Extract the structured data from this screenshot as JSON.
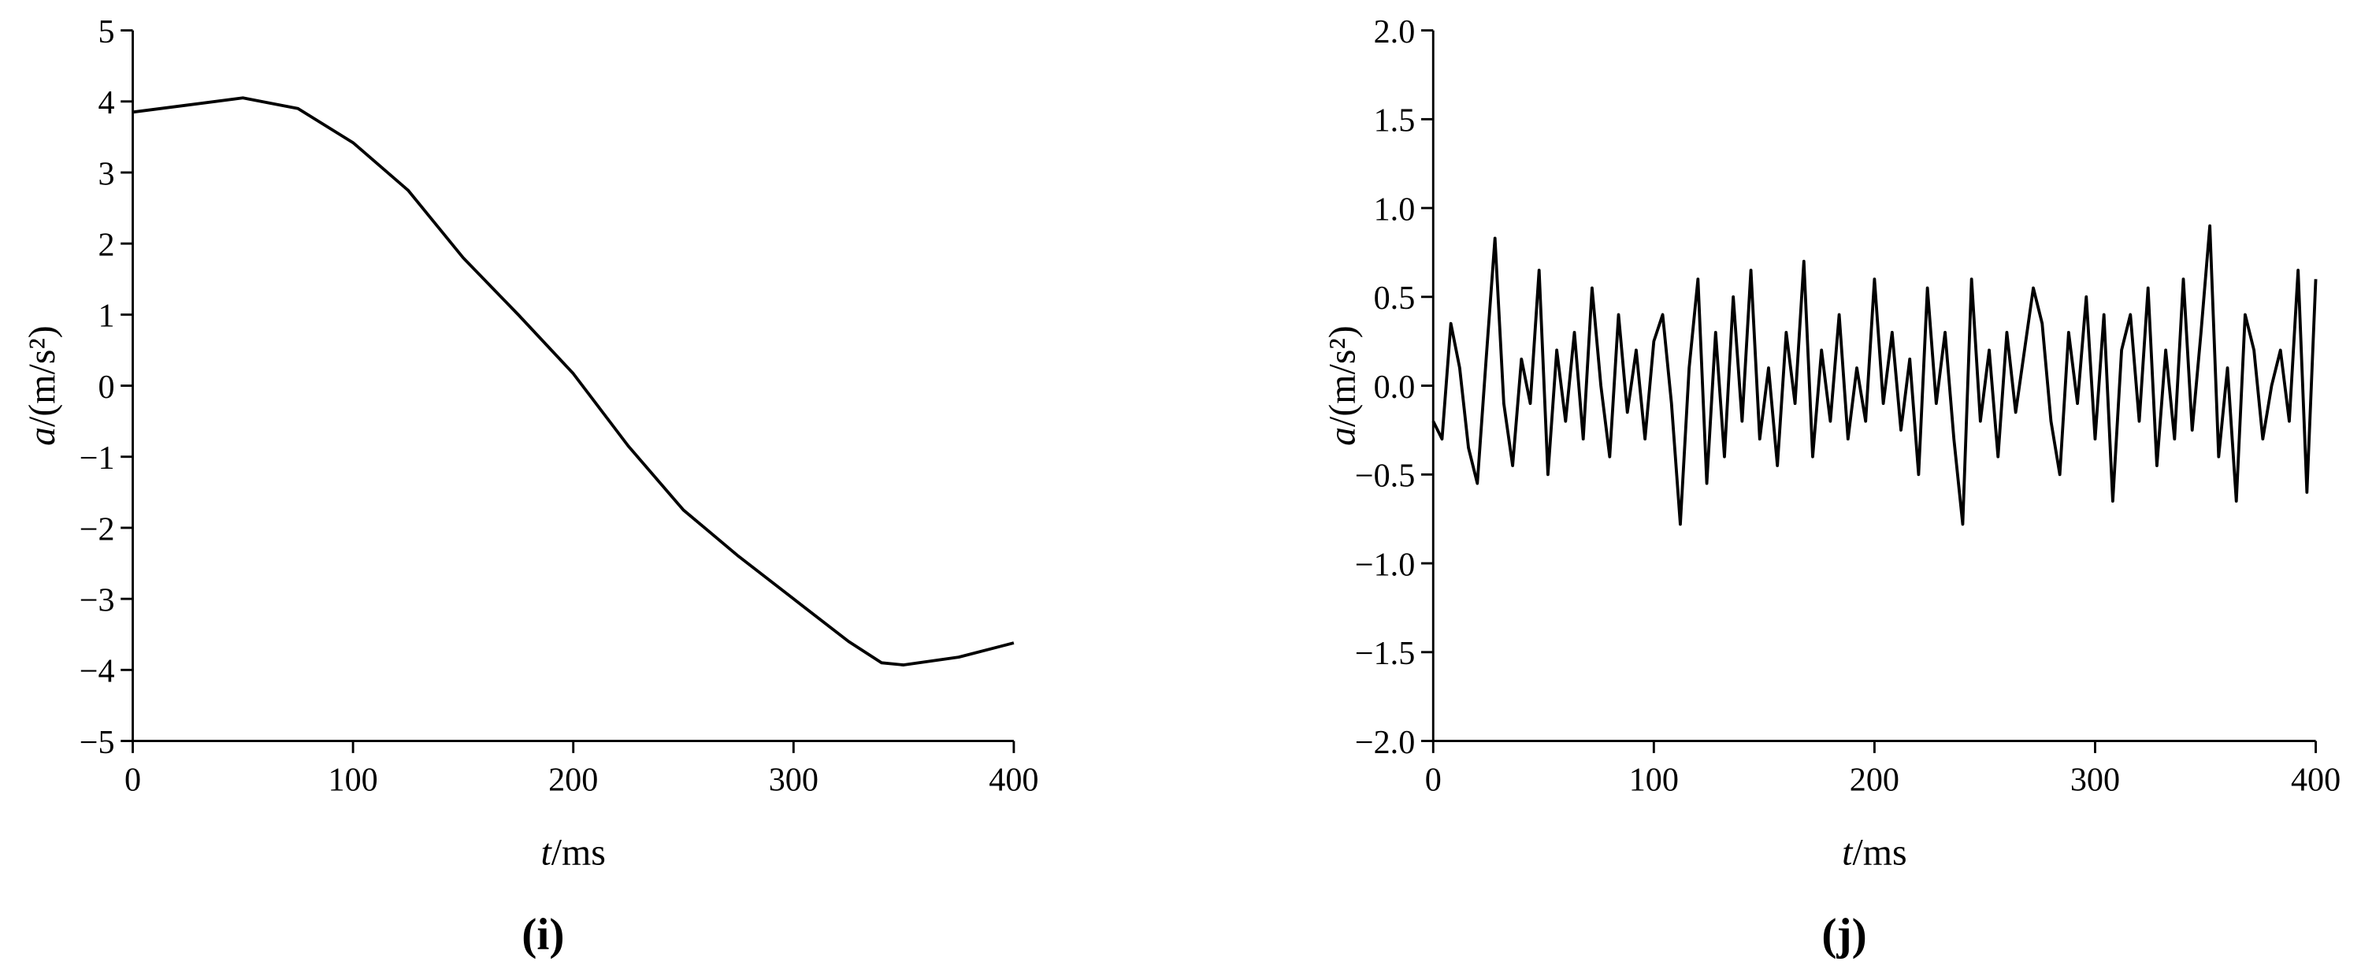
{
  "chart_data": [
    {
      "type": "line",
      "panel": "(i)",
      "xlabel": {
        "symbol": "t",
        "unit": "/ms"
      },
      "ylabel": {
        "symbol": "a",
        "unit": "/(m/s²)"
      },
      "xlim": [
        0,
        400
      ],
      "xticks": [
        0,
        100,
        200,
        300,
        400
      ],
      "ylim": [
        -5,
        5
      ],
      "yticks": [
        {
          "value": -5,
          "label": "−5"
        },
        {
          "value": -4,
          "label": "−4"
        },
        {
          "value": -3,
          "label": "−3"
        },
        {
          "value": -2,
          "label": "−2"
        },
        {
          "value": -1,
          "label": "−1"
        },
        0,
        1,
        2,
        3,
        4,
        5
      ],
      "x": [
        0,
        25,
        50,
        75,
        100,
        125,
        150,
        175,
        200,
        225,
        250,
        275,
        300,
        325,
        340,
        350,
        375,
        400
      ],
      "series": [
        {
          "color": "#000000",
          "values": [
            3.85,
            3.95,
            4.05,
            3.9,
            3.42,
            2.75,
            1.8,
            1.0,
            0.17,
            -0.85,
            -1.75,
            -2.4,
            -3.0,
            -3.6,
            -3.9,
            -3.93,
            -3.82,
            -3.62
          ]
        }
      ]
    },
    {
      "type": "line",
      "panel": "(j)",
      "xlabel": {
        "symbol": "t",
        "unit": "/ms"
      },
      "ylabel": {
        "symbol": "a",
        "unit": "/(m/s²)"
      },
      "xlim": [
        0,
        400
      ],
      "xticks": [
        0,
        100,
        200,
        300,
        400
      ],
      "ylim": [
        -2,
        2
      ],
      "yticks": [
        {
          "value": -2,
          "label": "−2.0"
        },
        {
          "value": -1.5,
          "label": "−1.5"
        },
        {
          "value": -1,
          "label": "−1.0"
        },
        {
          "value": -0.5,
          "label": "−0.5"
        },
        {
          "value": 0,
          "label": "0.0"
        },
        0.5,
        {
          "value": 1,
          "label": "1.0"
        },
        1.5,
        {
          "value": 2,
          "label": "2.0"
        }
      ],
      "x": [
        0,
        4,
        8,
        12,
        16,
        20,
        24,
        28,
        32,
        36,
        40,
        44,
        48,
        52,
        56,
        60,
        64,
        68,
        72,
        76,
        80,
        84,
        88,
        92,
        96,
        100,
        104,
        108,
        112,
        116,
        120,
        124,
        128,
        132,
        136,
        140,
        144,
        148,
        152,
        156,
        160,
        164,
        168,
        172,
        176,
        180,
        184,
        188,
        192,
        196,
        200,
        204,
        208,
        212,
        216,
        220,
        224,
        228,
        232,
        236,
        240,
        244,
        248,
        252,
        256,
        260,
        264,
        268,
        272,
        276,
        280,
        284,
        288,
        292,
        296,
        300,
        304,
        308,
        312,
        316,
        320,
        324,
        328,
        332,
        336,
        340,
        344,
        348,
        352,
        356,
        360,
        364,
        368,
        372,
        376,
        380,
        384,
        388,
        392,
        396,
        400
      ],
      "series": [
        {
          "color": "#000000",
          "values": [
            -0.2,
            -0.3,
            0.35,
            0.1,
            -0.35,
            -0.55,
            0.15,
            0.83,
            -0.1,
            -0.45,
            0.15,
            -0.1,
            0.65,
            -0.5,
            0.2,
            -0.2,
            0.3,
            -0.3,
            0.55,
            0.0,
            -0.4,
            0.4,
            -0.15,
            0.2,
            -0.3,
            0.25,
            0.4,
            -0.1,
            -0.78,
            0.1,
            0.6,
            -0.55,
            0.3,
            -0.4,
            0.5,
            -0.2,
            0.65,
            -0.3,
            0.1,
            -0.45,
            0.3,
            -0.1,
            0.7,
            -0.4,
            0.2,
            -0.2,
            0.4,
            -0.3,
            0.1,
            -0.2,
            0.6,
            -0.1,
            0.3,
            -0.25,
            0.15,
            -0.5,
            0.55,
            -0.1,
            0.3,
            -0.3,
            -0.78,
            0.6,
            -0.2,
            0.2,
            -0.4,
            0.3,
            -0.15,
            0.2,
            0.55,
            0.35,
            -0.2,
            -0.5,
            0.3,
            -0.1,
            0.5,
            -0.3,
            0.4,
            -0.65,
            0.2,
            0.4,
            -0.2,
            0.55,
            -0.45,
            0.2,
            -0.3,
            0.6,
            -0.25,
            0.3,
            0.9,
            -0.4,
            0.1,
            -0.65,
            0.4,
            0.2,
            -0.3,
            0.0,
            0.2,
            -0.2,
            0.65,
            -0.6,
            0.6
          ]
        }
      ]
    }
  ]
}
